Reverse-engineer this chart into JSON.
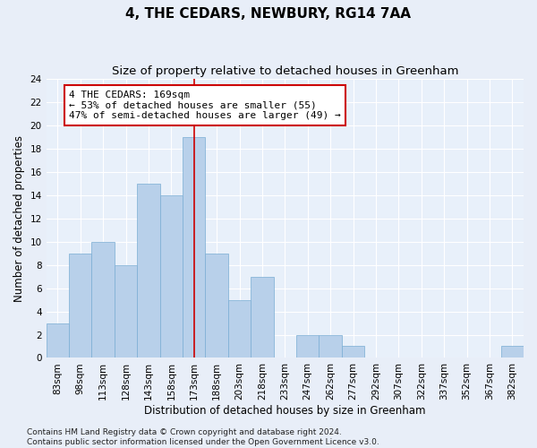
{
  "title": "4, THE CEDARS, NEWBURY, RG14 7AA",
  "subtitle": "Size of property relative to detached houses in Greenham",
  "xlabel": "Distribution of detached houses by size in Greenham",
  "ylabel": "Number of detached properties",
  "categories": [
    "83sqm",
    "98sqm",
    "113sqm",
    "128sqm",
    "143sqm",
    "158sqm",
    "173sqm",
    "188sqm",
    "203sqm",
    "218sqm",
    "233sqm",
    "247sqm",
    "262sqm",
    "277sqm",
    "292sqm",
    "307sqm",
    "322sqm",
    "337sqm",
    "352sqm",
    "367sqm",
    "382sqm"
  ],
  "values": [
    3,
    9,
    10,
    8,
    15,
    14,
    19,
    9,
    5,
    7,
    0,
    2,
    2,
    1,
    0,
    0,
    0,
    0,
    0,
    0,
    1
  ],
  "bar_color": "#b8d0ea",
  "bar_edge_color": "#7aadd4",
  "bar_edge_width": 0.5,
  "vline_x_index": 6,
  "vline_color": "#cc0000",
  "annotation_line1": "4 THE CEDARS: 169sqm",
  "annotation_line2": "← 53% of detached houses are smaller (55)",
  "annotation_line3": "47% of semi-detached houses are larger (49) →",
  "annotation_box_facecolor": "#ffffff",
  "annotation_box_edgecolor": "#cc0000",
  "ylim": [
    0,
    24
  ],
  "yticks": [
    0,
    2,
    4,
    6,
    8,
    10,
    12,
    14,
    16,
    18,
    20,
    22,
    24
  ],
  "bg_color": "#e8eef8",
  "plot_bg_color": "#e8f0fa",
  "grid_color": "#ffffff",
  "footer": "Contains HM Land Registry data © Crown copyright and database right 2024.\nContains public sector information licensed under the Open Government Licence v3.0.",
  "title_fontsize": 11,
  "subtitle_fontsize": 9.5,
  "axis_label_fontsize": 8.5,
  "tick_fontsize": 7.5,
  "annotation_fontsize": 8,
  "footer_fontsize": 6.5
}
